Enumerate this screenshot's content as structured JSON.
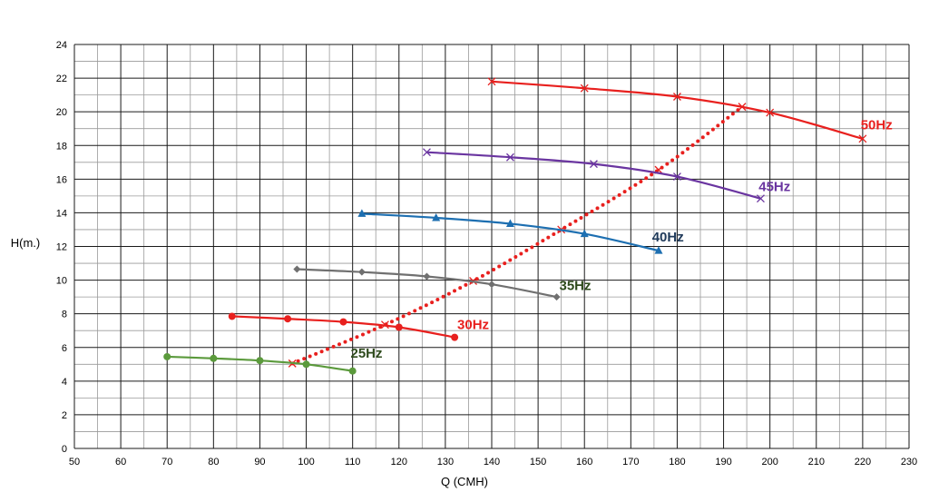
{
  "chart_data": {
    "type": "line",
    "xlabel": "Q (CMH)",
    "ylabel": "H(m.)",
    "xlim": [
      50,
      230
    ],
    "ylim": [
      0,
      24
    ],
    "x_major_step": 10,
    "x_minor_step": 5,
    "y_major_step": 2,
    "y_minor_step": 1,
    "grid": true,
    "x_ticks": [
      "50",
      "60",
      "70",
      "80",
      "90",
      "100",
      "110",
      "120",
      "130",
      "140",
      "150",
      "160",
      "170",
      "180",
      "190",
      "200",
      "210",
      "220",
      "230"
    ],
    "y_ticks": [
      "0",
      "2",
      "4",
      "6",
      "8",
      "10",
      "12",
      "14",
      "16",
      "18",
      "20",
      "22",
      "24"
    ],
    "series": [
      {
        "name": "25Hz",
        "color": "#5b9a3c",
        "label_color": "#2e4a1c",
        "marker": "circle",
        "points": [
          [
            70,
            5.45
          ],
          [
            80,
            5.35
          ],
          [
            90,
            5.22
          ],
          [
            100,
            5.0
          ],
          [
            110,
            4.6
          ]
        ]
      },
      {
        "name": "30Hz",
        "color": "#e8201e",
        "label_color": "#e8201e",
        "marker": "circle",
        "points": [
          [
            84,
            7.85
          ],
          [
            96,
            7.7
          ],
          [
            108,
            7.52
          ],
          [
            120,
            7.2
          ],
          [
            132,
            6.6
          ]
        ]
      },
      {
        "name": "35Hz",
        "color": "#707070",
        "label_color": "#2e4a1c",
        "marker": "diamond",
        "points": [
          [
            98,
            10.65
          ],
          [
            112,
            10.48
          ],
          [
            126,
            10.22
          ],
          [
            140,
            9.75
          ],
          [
            154,
            9.0
          ]
        ]
      },
      {
        "name": "40Hz",
        "color": "#1d6fb1",
        "label_color": "#1f3a5a",
        "marker": "triangle",
        "points": [
          [
            112,
            13.95
          ],
          [
            128,
            13.7
          ],
          [
            144,
            13.35
          ],
          [
            160,
            12.75
          ],
          [
            176,
            11.75
          ]
        ]
      },
      {
        "name": "45Hz",
        "color": "#6a35a0",
        "label_color": "#6a35a0",
        "marker": "x",
        "points": [
          [
            126,
            17.6
          ],
          [
            144,
            17.3
          ],
          [
            162,
            16.9
          ],
          [
            180,
            16.15
          ],
          [
            198,
            14.85
          ]
        ]
      },
      {
        "name": "50Hz",
        "color": "#e8201e",
        "label_color": "#e8201e",
        "marker": "x",
        "points": [
          [
            140,
            21.8
          ],
          [
            160,
            21.4
          ],
          [
            180,
            20.9
          ],
          [
            200,
            19.95
          ],
          [
            220,
            18.4
          ]
        ]
      }
    ],
    "series_labels": [
      {
        "text": "25Hz",
        "x": 113,
        "y": 5.4,
        "color": "#2e4a1c"
      },
      {
        "text": "30Hz",
        "x": 136,
        "y": 7.1,
        "color": "#e8201e"
      },
      {
        "text": "35Hz",
        "x": 158,
        "y": 9.4,
        "color": "#2e4a1c"
      },
      {
        "text": "40Hz",
        "x": 178,
        "y": 12.3,
        "color": "#1f3a5a"
      },
      {
        "text": "45Hz",
        "x": 201,
        "y": 15.3,
        "color": "#6a35a0"
      },
      {
        "text": "50Hz",
        "x": 223,
        "y": 18.95,
        "color": "#e8201e"
      }
    ],
    "efficiency_line": {
      "color": "#e8201e",
      "style": "dotted",
      "points": [
        [
          97,
          5.05
        ],
        [
          117,
          7.35
        ],
        [
          136,
          9.95
        ],
        [
          155,
          13.0
        ],
        [
          176,
          16.55
        ],
        [
          194,
          20.3
        ]
      ]
    }
  }
}
